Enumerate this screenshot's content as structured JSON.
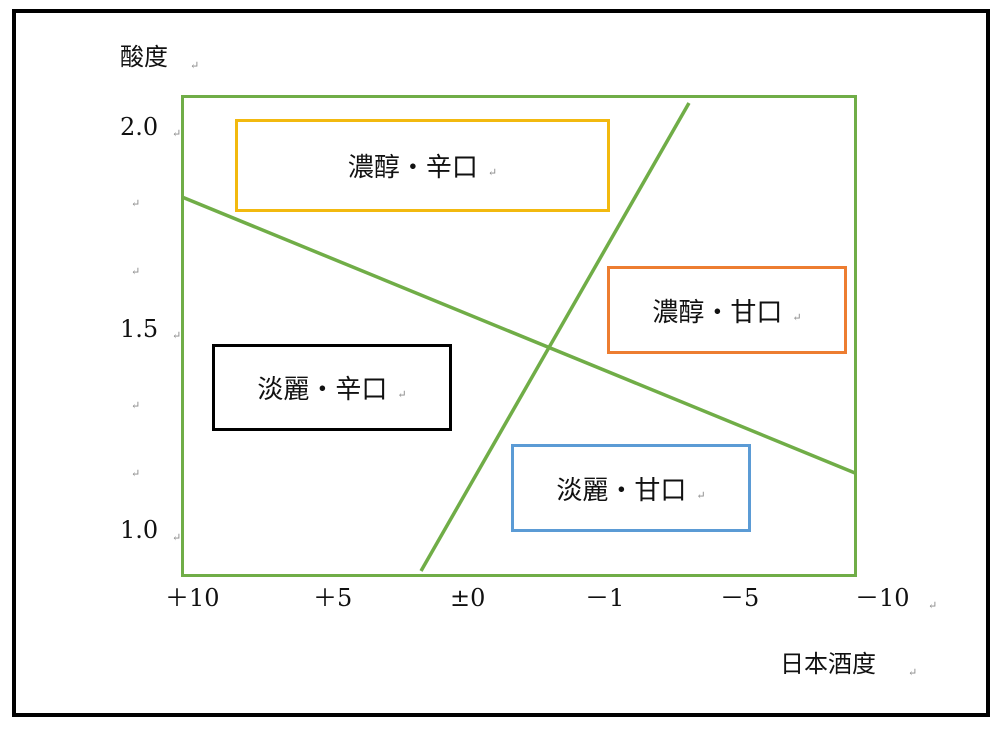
{
  "axes": {
    "y_title": "酸度",
    "x_title": "日本酒度",
    "y_ticks": [
      "2.0",
      "1.5",
      "1.0"
    ],
    "x_ticks": [
      "＋10",
      "＋5",
      "±0",
      "－1",
      "－5",
      "－10"
    ]
  },
  "paragraph_mark": "↵",
  "regions": [
    {
      "label": "濃醇・辛口",
      "color": "#f2b90f"
    },
    {
      "label": "濃醇・甘口",
      "color": "#ed7d31"
    },
    {
      "label": "淡麗・辛口",
      "color": "#000000"
    },
    {
      "label": "淡麗・甘口",
      "color": "#5b9bd5"
    }
  ],
  "colors": {
    "plot_border": "#70ad47",
    "divider_lines": "#70ad47",
    "frame": "#000000"
  }
}
